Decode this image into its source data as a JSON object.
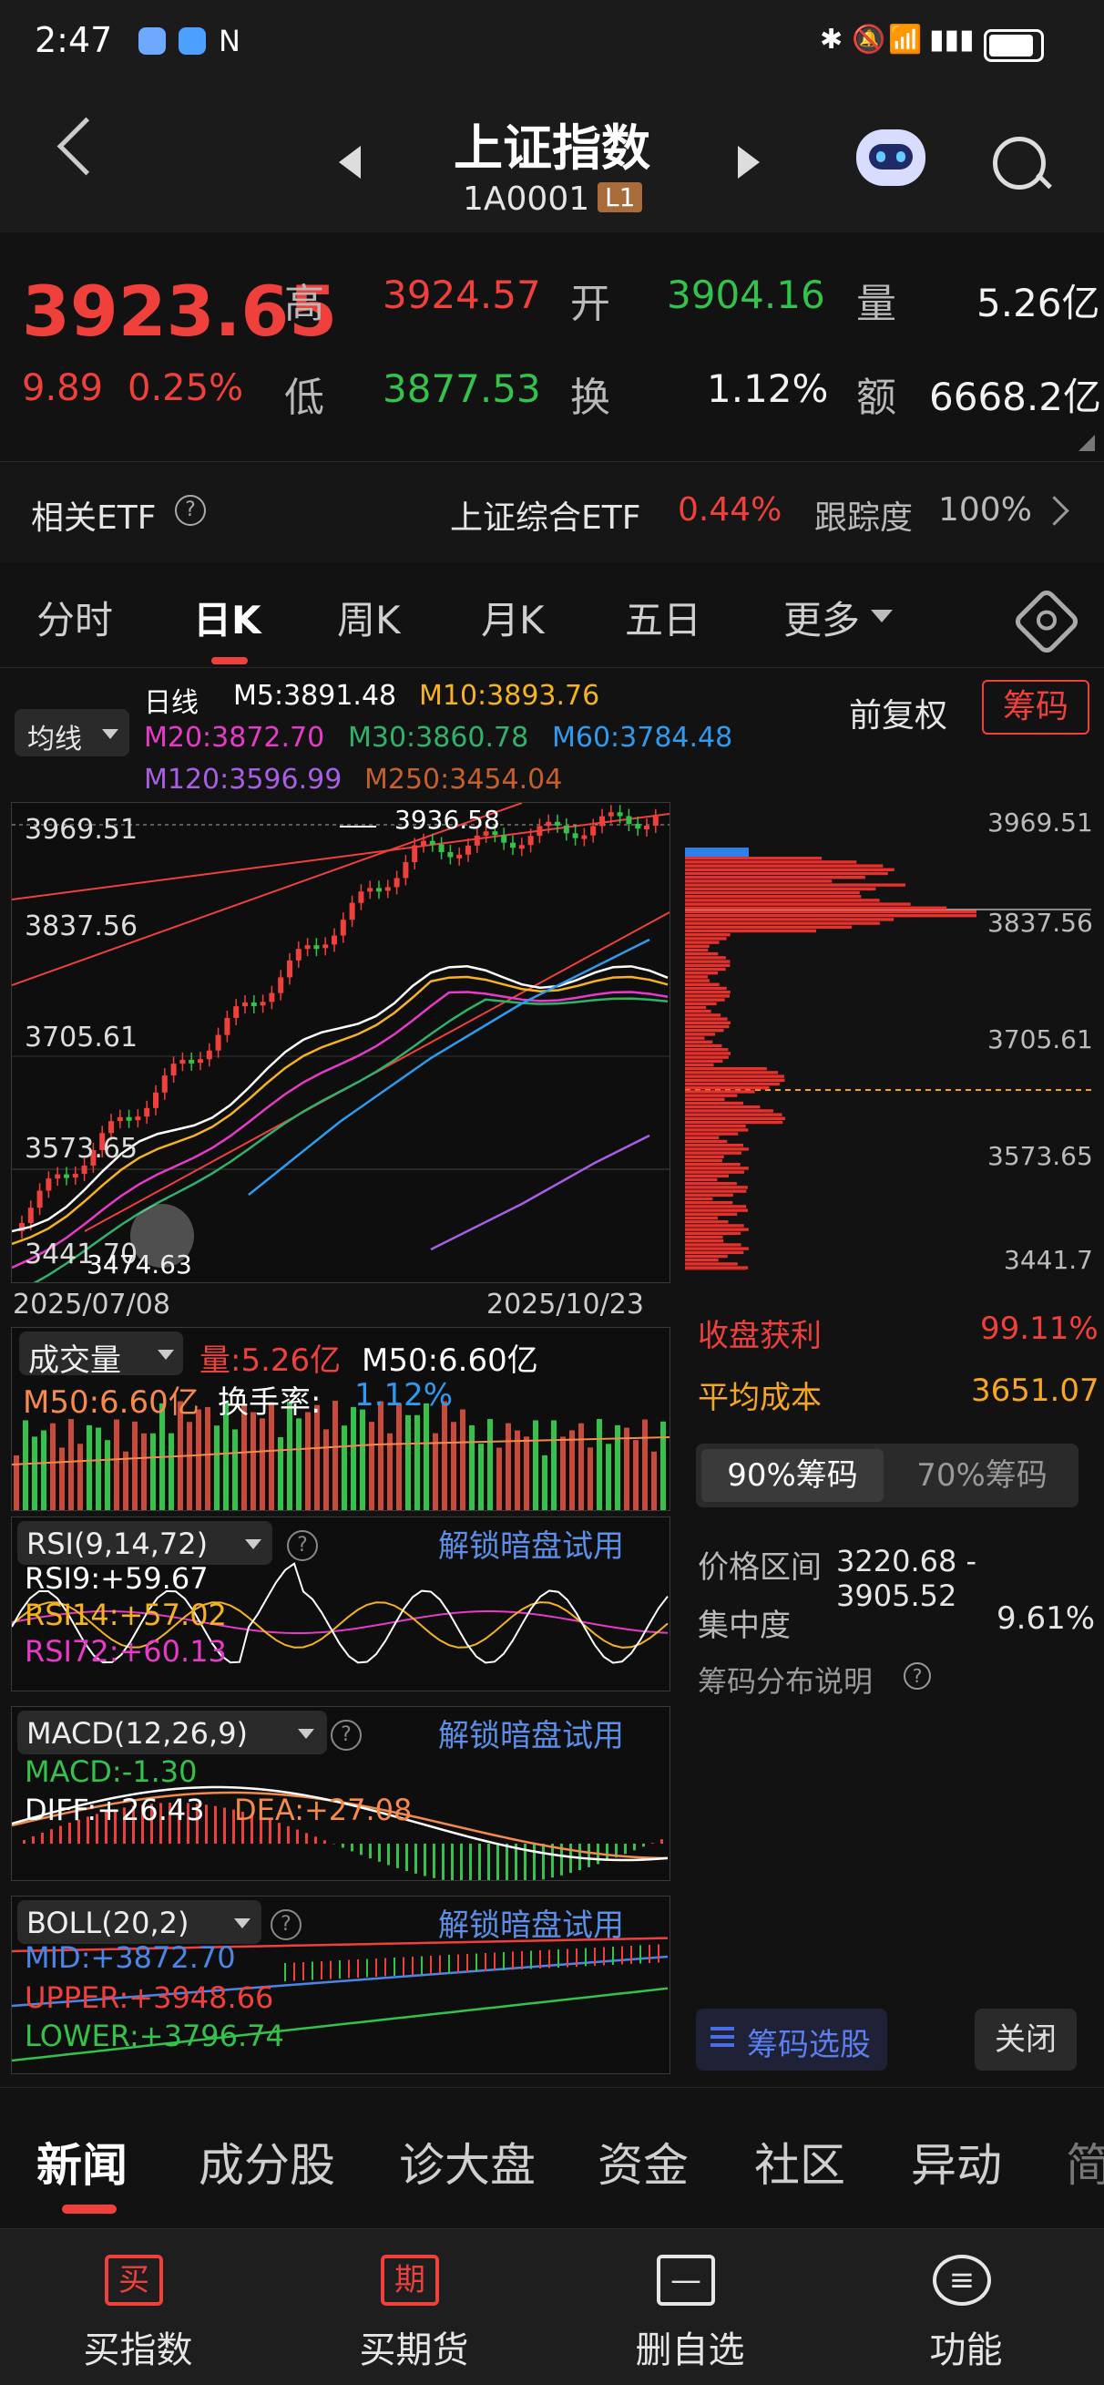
{
  "status_bar": {
    "time": "2:47"
  },
  "header": {
    "title": "上证指数",
    "code": "1A0001",
    "level_badge": "L1"
  },
  "quote": {
    "price": "3923.65",
    "change": "9.89",
    "change_pct": "0.25%",
    "high_label": "高",
    "high": "3924.57",
    "open_label": "开",
    "open": "3904.16",
    "volume_label": "量",
    "volume": "5.26亿",
    "low_label": "低",
    "low": "3877.53",
    "turnover_label": "换",
    "turnover": "1.12%",
    "amount_label": "额",
    "amount": "6668.2亿"
  },
  "etf": {
    "label": "相关ETF",
    "name": "上证综合ETF",
    "pct": "0.44%",
    "track_label": "跟踪度",
    "track": "100%"
  },
  "tabs": [
    "分时",
    "日K",
    "周K",
    "月K",
    "五日",
    "更多"
  ],
  "kline": {
    "ma_selector": "均线",
    "line_type": "日线",
    "m5": "M5:3891.48",
    "m10": "M10:3893.76",
    "m20": "M20:3872.70",
    "m30": "M30:3860.78",
    "m60": "M60:3784.48",
    "m120": "M120:3596.99",
    "m250": "M250:3454.04",
    "adjust": "前复权",
    "chip_btn": "筹码",
    "y_labels": [
      "3969.51",
      "3837.56",
      "3705.61",
      "3573.65",
      "3441.70"
    ],
    "max_mark": "3936.58",
    "min_mark": "3474.63",
    "date_start": "2025/07/08",
    "date_end": "2025/10/23",
    "chip_y_labels": [
      "3969.51",
      "3837.56",
      "3705.61",
      "3573.65",
      "3441.7"
    ]
  },
  "volume": {
    "selector": "成交量",
    "vol": "量:5.26亿",
    "m50": "M50:6.60亿",
    "m50b": "M50:6.60亿",
    "turnover_rate_label": "换手率:",
    "turnover_rate": "1.12%"
  },
  "rsi": {
    "selector": "RSI(9,14,72)",
    "rsi9": "RSI9:+59.67",
    "rsi14": "RSI14:+57.02",
    "rsi72": "RSI72:+60.13",
    "unlock": "解锁暗盘试用"
  },
  "macd": {
    "selector": "MACD(12,26,9)",
    "macd": "MACD:-1.30",
    "diff": "DIFF:+26.43",
    "dea": "DEA:+27.08",
    "unlock": "解锁暗盘试用"
  },
  "boll": {
    "selector": "BOLL(20,2)",
    "mid": "MID:+3872.70",
    "upper": "UPPER:+3948.66",
    "lower": "LOWER:+3796.74",
    "unlock": "解锁暗盘试用"
  },
  "chip": {
    "profit_label": "收盘获利",
    "profit": "99.11%",
    "avg_cost_label": "平均成本",
    "avg_cost": "3651.07",
    "tab_90": "90%筹码",
    "tab_70": "70%筹码",
    "range_label": "价格区间",
    "range": "3220.68 - 3905.52",
    "conc_label": "集中度",
    "conc": "9.61%",
    "explain": "筹码分布说明",
    "select_btn": "筹码选股",
    "close_btn": "关闭"
  },
  "bottom_tabs": [
    "新闻",
    "成分股",
    "诊大盘",
    "资金",
    "社区",
    "异动",
    "简"
  ],
  "bottom_nav": [
    {
      "icon": "买",
      "label": "买指数"
    },
    {
      "icon": "期",
      "label": "买期货"
    },
    {
      "icon": "—",
      "label": "删自选"
    },
    {
      "icon": "≡",
      "label": "功能"
    }
  ],
  "colors": {
    "up": "#f0403c",
    "down": "#35c24a",
    "accent_blue": "#4a86e8",
    "ma5": "#ffffff",
    "ma10": "#f5b321",
    "ma20": "#e83ac8",
    "ma30": "#2fb36b",
    "ma60": "#2e9bf0",
    "ma120": "#a95ee6",
    "ma250": "#c6602a"
  }
}
